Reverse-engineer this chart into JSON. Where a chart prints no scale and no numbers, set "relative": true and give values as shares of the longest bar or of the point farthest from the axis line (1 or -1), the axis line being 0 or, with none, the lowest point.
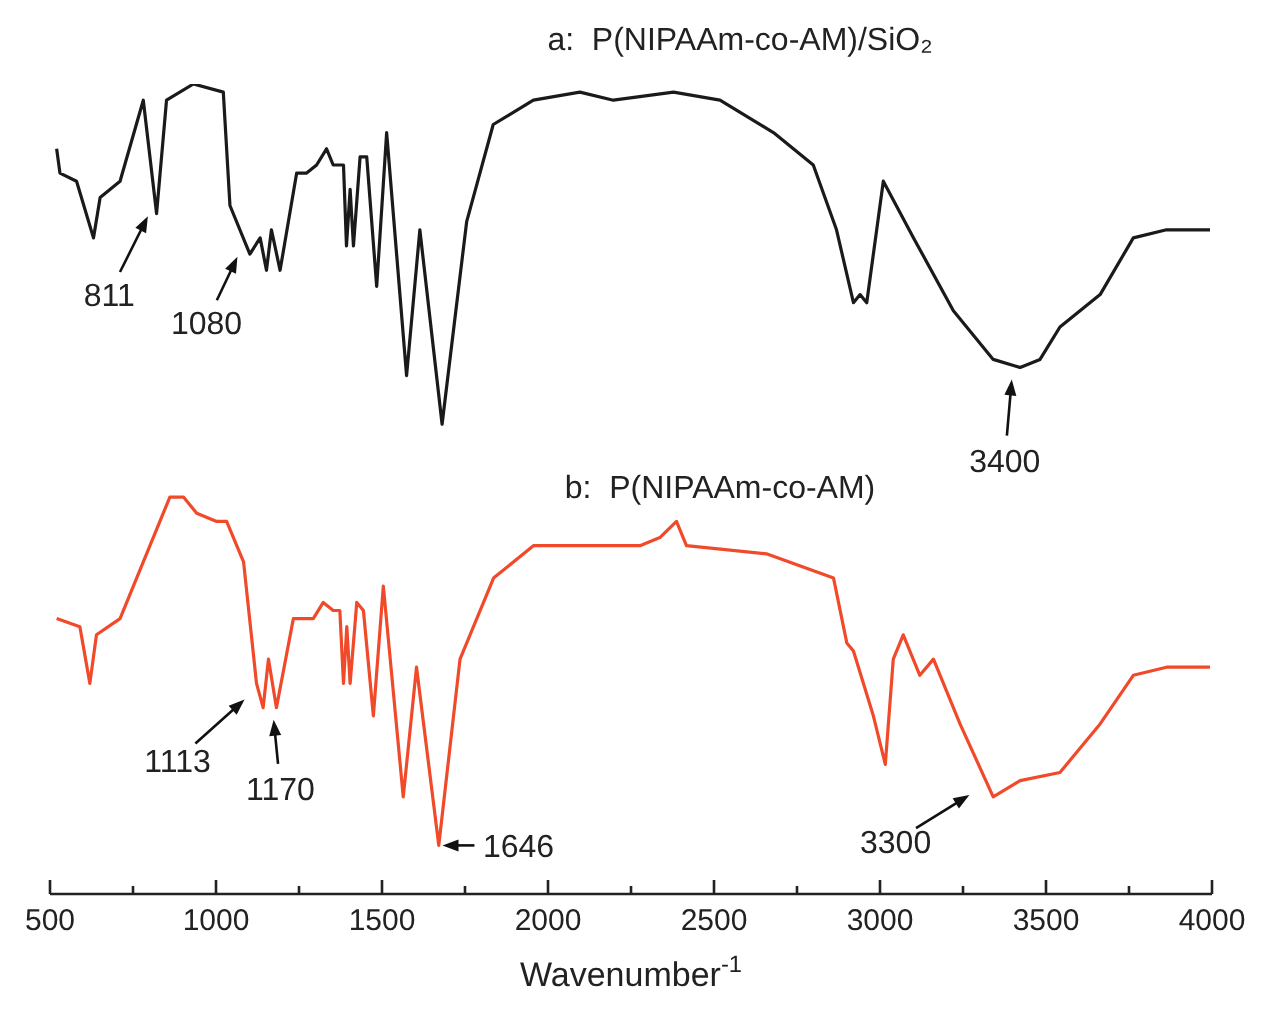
{
  "chart_data": {
    "type": "line",
    "relative": true,
    "xlabel": "Wavenumber$^{-1}$",
    "xlim": [
      500,
      4000
    ],
    "xticks": [
      500,
      {
        "value": 750,
        "label": null
      },
      1000,
      {
        "value": 1250,
        "label": null
      },
      1500,
      {
        "value": 1750,
        "label": null
      },
      2000,
      {
        "value": 2250,
        "label": null
      },
      2500,
      {
        "value": 2750,
        "label": null
      },
      3000,
      {
        "value": 3250,
        "label": null
      },
      3500,
      {
        "value": 3750,
        "label": null
      },
      4000
    ],
    "series": [
      {
        "name": "a:  P(NIPAAm-co-AM)/SiO₂",
        "color": "#1a1a1a",
        "x": [
          520,
          530,
          580,
          631,
          651,
          711,
          781,
          821,
          851,
          932,
          1022,
          1042,
          1102,
          1133,
          1152,
          1167,
          1193,
          1243,
          1273,
          1303,
          1333,
          1353,
          1384,
          1393,
          1404,
          1414,
          1434,
          1454,
          1484,
          1514,
          1574,
          1614,
          1681,
          1755,
          1835,
          1956,
          2096,
          2197,
          2378,
          2518,
          2679,
          2799,
          2869,
          2920,
          2940,
          2960,
          3010,
          3101,
          3221,
          3341,
          3422,
          3482,
          3542,
          3663,
          3763,
          3863,
          3994
        ],
        "values": [
          0.92,
          0.89,
          0.88,
          0.81,
          0.86,
          0.88,
          0.98,
          0.84,
          0.98,
          1,
          0.99,
          0.85,
          0.79,
          0.81,
          0.77,
          0.82,
          0.77,
          0.89,
          0.89,
          0.9,
          0.92,
          0.9,
          0.9,
          0.8,
          0.87,
          0.8,
          0.91,
          0.91,
          0.75,
          0.94,
          0.64,
          0.82,
          0.58,
          0.83,
          0.95,
          0.98,
          0.99,
          0.98,
          0.99,
          0.98,
          0.94,
          0.9,
          0.82,
          0.73,
          0.74,
          0.73,
          0.88,
          0.81,
          0.72,
          0.66,
          0.65,
          0.66,
          0.7,
          0.74,
          0.81,
          0.82,
          0.82
        ]
      },
      {
        "name": "b:  P(NIPAAm-co-AM)",
        "color": "#f04a2a",
        "x": [
          520,
          590,
          620,
          640,
          711,
          831,
          861,
          902,
          942,
          1002,
          1032,
          1083,
          1122,
          1142,
          1158,
          1182,
          1233,
          1293,
          1323,
          1353,
          1373,
          1384,
          1394,
          1404,
          1424,
          1444,
          1474,
          1504,
          1564,
          1604,
          1671,
          1735,
          1836,
          1956,
          2096,
          2277,
          2337,
          2387,
          2417,
          2658,
          2860,
          2900,
          2920,
          2980,
          3016,
          3040,
          3070,
          3120,
          3161,
          3241,
          3341,
          3422,
          3542,
          3663,
          3763,
          3863,
          3994
        ],
        "values": [
          0.34,
          0.33,
          0.26,
          0.32,
          0.34,
          0.46,
          0.49,
          0.49,
          0.47,
          0.46,
          0.46,
          0.41,
          0.26,
          0.23,
          0.29,
          0.23,
          0.34,
          0.34,
          0.36,
          0.35,
          0.35,
          0.26,
          0.33,
          0.26,
          0.36,
          0.35,
          0.22,
          0.38,
          0.12,
          0.28,
          0.06,
          0.29,
          0.39,
          0.43,
          0.43,
          0.43,
          0.44,
          0.46,
          0.43,
          0.42,
          0.39,
          0.31,
          0.3,
          0.22,
          0.16,
          0.29,
          0.32,
          0.27,
          0.29,
          0.21,
          0.12,
          0.14,
          0.15,
          0.21,
          0.27,
          0.28,
          0.28
        ]
      }
    ],
    "annotations": [
      {
        "text": "811",
        "x": 811,
        "y": 0.85
      },
      {
        "text": "1080",
        "x": 1080,
        "y": 0.8
      },
      {
        "text": "3400",
        "x": 3400,
        "y": 0.65
      },
      {
        "text": "1113",
        "x": 1113,
        "y": 0.25
      },
      {
        "text": "1170",
        "x": 1170,
        "y": 0.23
      },
      {
        "text": "1646",
        "x": 1646,
        "y": 0.06
      },
      {
        "text": "3300",
        "x": 3300,
        "y": 0.13
      }
    ]
  }
}
